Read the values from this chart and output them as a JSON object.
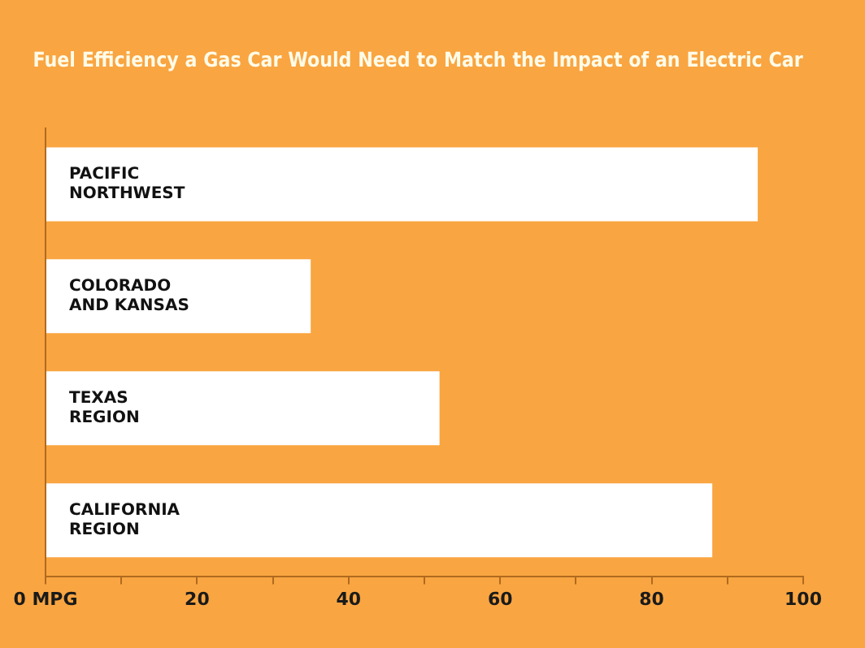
{
  "chart_data": {
    "type": "bar",
    "orientation": "horizontal",
    "title": "Fuel Efficiency a Gas Car Would Need to Match the Impact of an Electric Car",
    "categories": [
      "PACIFIC\nNORTHWEST",
      "COLORADO\nAND KANSAS",
      "TEXAS\nREGION",
      "CALIFORNIA\nREGION"
    ],
    "values": [
      94,
      35,
      52,
      88
    ],
    "color": "#ffffff",
    "xlim": [
      0,
      100
    ],
    "xticks": [
      {
        "value": 0,
        "label": "0 MPG"
      },
      {
        "value": 10,
        "label": null
      },
      20,
      {
        "value": 30,
        "label": null
      },
      40,
      {
        "value": 50,
        "label": null
      },
      60,
      {
        "value": 70,
        "label": null
      },
      80,
      {
        "value": 90,
        "label": null
      },
      100
    ],
    "grid": false,
    "legend": false
  }
}
